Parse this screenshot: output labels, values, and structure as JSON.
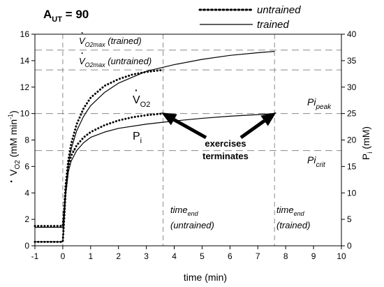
{
  "chart_data": {
    "type": "line",
    "title_prefix": "A",
    "title_sub": "UT",
    "title_suffix": " = 90",
    "xlabel": "time (min)",
    "ylabel_left": {
      "main": "V",
      "sub": "O2",
      "rest": " (mM min",
      "sup": "-1",
      "end": ")"
    },
    "ylabel_right": {
      "main": "P",
      "sub": "i",
      "rest": " (mM)"
    },
    "xlim": [
      -1,
      10
    ],
    "ylim_left": [
      0,
      16
    ],
    "ylim_right": [
      0,
      40
    ],
    "xticks": [
      -1,
      0,
      1,
      2,
      3,
      4,
      5,
      6,
      7,
      8,
      9,
      10
    ],
    "yticks_left": [
      0,
      2,
      4,
      6,
      8,
      10,
      12,
      14,
      16
    ],
    "yticks_right": [
      0,
      5,
      10,
      15,
      20,
      25,
      30,
      35,
      40
    ],
    "legend": [
      {
        "label": "untrained",
        "style": "dotted"
      },
      {
        "label": "trained",
        "style": "solid"
      }
    ],
    "series": [
      {
        "name": "untrained",
        "curve": "VO2",
        "axis": "left",
        "style": "dotted",
        "points": [
          [
            -1,
            1.5
          ],
          [
            0,
            1.5
          ],
          [
            0.05,
            2.8
          ],
          [
            0.1,
            4.5
          ],
          [
            0.2,
            6.5
          ],
          [
            0.3,
            7.7
          ],
          [
            0.5,
            9.2
          ],
          [
            0.75,
            10.4
          ],
          [
            1,
            11.2
          ],
          [
            1.5,
            12.1
          ],
          [
            2,
            12.6
          ],
          [
            2.5,
            12.95
          ],
          [
            3,
            13.15
          ],
          [
            3.6,
            13.3
          ]
        ]
      },
      {
        "name": "trained",
        "curve": "VO2",
        "axis": "left",
        "style": "solid",
        "points": [
          [
            -1,
            1.4
          ],
          [
            0,
            1.4
          ],
          [
            0.05,
            2.8
          ],
          [
            0.1,
            4.3
          ],
          [
            0.2,
            6.2
          ],
          [
            0.3,
            7.3
          ],
          [
            0.5,
            8.7
          ],
          [
            0.75,
            9.8
          ],
          [
            1,
            10.6
          ],
          [
            1.5,
            11.6
          ],
          [
            2,
            12.3
          ],
          [
            3,
            13.2
          ],
          [
            4,
            13.7
          ],
          [
            5,
            14.1
          ],
          [
            6,
            14.4
          ],
          [
            7,
            14.6
          ],
          [
            7.6,
            14.7
          ]
        ]
      },
      {
        "name": "untrained",
        "curve": "Pi",
        "axis": "right",
        "style": "dotted",
        "points": [
          [
            -1,
            0.75
          ],
          [
            0,
            0.75
          ],
          [
            0.05,
            5
          ],
          [
            0.1,
            10
          ],
          [
            0.2,
            15
          ],
          [
            0.3,
            17
          ],
          [
            0.5,
            19
          ],
          [
            0.75,
            20.5
          ],
          [
            1,
            21.5
          ],
          [
            1.5,
            22.8
          ],
          [
            2,
            23.7
          ],
          [
            2.5,
            24.3
          ],
          [
            3,
            24.7
          ],
          [
            3.6,
            25
          ]
        ]
      },
      {
        "name": "trained",
        "curve": "Pi",
        "axis": "right",
        "style": "solid",
        "points": [
          [
            -1,
            0.75
          ],
          [
            0,
            0.75
          ],
          [
            0.05,
            5
          ],
          [
            0.1,
            9.5
          ],
          [
            0.2,
            14
          ],
          [
            0.3,
            16
          ],
          [
            0.5,
            18
          ],
          [
            0.75,
            19.5
          ],
          [
            1,
            20.5
          ],
          [
            1.5,
            21.5
          ],
          [
            2,
            22.2
          ],
          [
            3,
            23
          ],
          [
            4,
            23.6
          ],
          [
            5,
            24.1
          ],
          [
            6,
            24.5
          ],
          [
            7,
            24.8
          ],
          [
            7.6,
            25
          ]
        ]
      }
    ],
    "hlines": [
      {
        "axis": "left",
        "y": 14.8,
        "label": "trained"
      },
      {
        "axis": "left",
        "y": 13.3,
        "label": "untrained"
      },
      {
        "axis": "left",
        "y": 10,
        "label": "peak"
      },
      {
        "axis": "left",
        "y": 7.2,
        "label": "crit"
      }
    ],
    "vlines": [
      0,
      3.6,
      7.6
    ],
    "annotations": {
      "vo2max_trained": {
        "main": "V",
        "sub": "O2max",
        "rest": " (trained)"
      },
      "vo2max_untrained": {
        "main": "V",
        "sub": "O2max",
        "rest": " (untrained)"
      },
      "vo2_curve": {
        "main": "V",
        "sub": "O2"
      },
      "pi_curve": {
        "main": "P",
        "sub": "i"
      },
      "pi_peak": {
        "main": "Pi",
        "sub": "peak"
      },
      "pi_crit": {
        "main": "Pi",
        "sub": "crit"
      },
      "exercises_line1": "exercises",
      "exercises_line2": "terminates",
      "time_end_untrained": {
        "main": "time",
        "sub": "end",
        "line2": "(untrained)"
      },
      "time_end_trained": {
        "main": "time",
        "sub": "end",
        "line2": "(trained)"
      }
    },
    "arrow_targets": [
      [
        3.6,
        10
      ],
      [
        7.6,
        10
      ]
    ]
  }
}
